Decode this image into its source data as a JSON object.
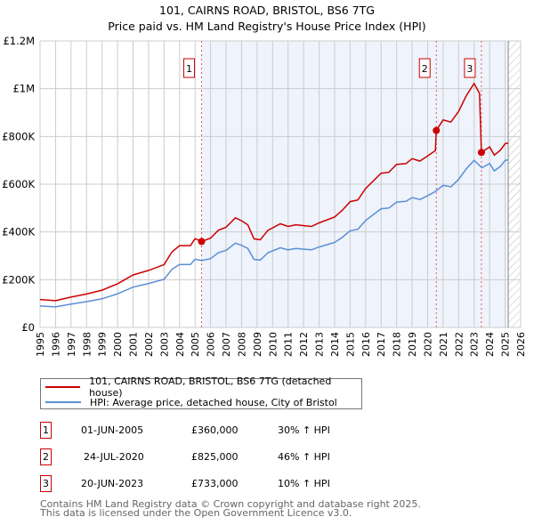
{
  "title": "101, CAIRNS ROAD, BRISTOL, BS6 7TG",
  "subtitle": "Price paid vs. HM Land Registry's House Price Index (HPI)",
  "chart_data": {
    "type": "line",
    "title": "101, CAIRNS ROAD, BRISTOL, BS6 7TG — Price paid vs. HM Land Registry's House Price Index (HPI)",
    "xlim": [
      1995,
      2026
    ],
    "ylim": [
      0,
      1200000
    ],
    "x_ticks": [
      "1995",
      "1996",
      "1997",
      "1998",
      "1999",
      "2000",
      "2001",
      "2002",
      "2003",
      "2004",
      "2005",
      "2006",
      "2007",
      "2008",
      "2009",
      "2010",
      "2011",
      "2012",
      "2013",
      "2014",
      "2015",
      "2016",
      "2017",
      "2018",
      "2019",
      "2020",
      "2021",
      "2022",
      "2023",
      "2024",
      "2025",
      "2026"
    ],
    "y_ticks": [
      {
        "v": 0,
        "label": "£0"
      },
      {
        "v": 200000,
        "label": "£200K"
      },
      {
        "v": 400000,
        "label": "£400K"
      },
      {
        "v": 600000,
        "label": "£600K"
      },
      {
        "v": 800000,
        "label": "£800K"
      },
      {
        "v": 1000000,
        "label": "£1M"
      },
      {
        "v": 1200000,
        "label": "£1.2M"
      }
    ],
    "grid": true,
    "shaded_range": [
      2005.42,
      2025.2
    ],
    "data_end": 2025.2,
    "series": [
      {
        "name": "101, CAIRNS ROAD, BRISTOL, BS6 7TG (detached house)",
        "color": "#cc0000",
        "x": [
          1995,
          1996,
          1997,
          1998,
          1999,
          2000,
          2001,
          2002,
          2003,
          2003.5,
          2004,
          2004.7,
          2005,
          2005.42,
          2006,
          2006.5,
          2007,
          2007.6,
          2008,
          2008.4,
          2008.8,
          2009.2,
          2009.7,
          2010.5,
          2011,
          2011.5,
          2012.5,
          2013,
          2014,
          2014.5,
          2015,
          2015.5,
          2016,
          2017,
          2017.5,
          2018,
          2018.6,
          2019,
          2019.5,
          2020,
          2020.5,
          2020.56,
          2021,
          2021.5,
          2022,
          2022.5,
          2023,
          2023.35,
          2023.47,
          2024,
          2024.3,
          2024.7,
          2025,
          2025.2
        ],
        "y": [
          117000,
          112000,
          127000,
          140000,
          156000,
          183000,
          220000,
          239000,
          263000,
          316000,
          343000,
          343000,
          372000,
          360000,
          374000,
          407000,
          420000,
          459000,
          447000,
          430000,
          371000,
          367000,
          407000,
          434000,
          423000,
          430000,
          423000,
          438000,
          463000,
          491000,
          527000,
          534000,
          582000,
          646000,
          650000,
          683000,
          686000,
          707000,
          697000,
          718000,
          741000,
          825000,
          869000,
          860000,
          905000,
          971000,
          1022000,
          980000,
          733000,
          756000,
          722000,
          743000,
          770000,
          772000
        ]
      },
      {
        "name": "HPI: Average price, detached house, City of Bristol",
        "color": "#5b8fd6",
        "x": [
          1995,
          1996,
          1997,
          1998,
          1999,
          2000,
          2001,
          2002,
          2003,
          2003.5,
          2004,
          2004.7,
          2005,
          2005.42,
          2006,
          2006.5,
          2007,
          2007.6,
          2008,
          2008.4,
          2008.8,
          2009.2,
          2009.7,
          2010.5,
          2011,
          2011.5,
          2012.5,
          2013,
          2014,
          2014.5,
          2015,
          2015.5,
          2016,
          2017,
          2017.5,
          2018,
          2018.6,
          2019,
          2019.5,
          2020,
          2020.5,
          2021,
          2021.5,
          2022,
          2022.5,
          2023,
          2023.5,
          2024,
          2024.3,
          2024.7,
          2025,
          2025.2
        ],
        "y": [
          90000,
          86000,
          98000,
          108000,
          120000,
          141000,
          169000,
          184000,
          202000,
          243000,
          264000,
          264000,
          286000,
          280000,
          288000,
          313000,
          323000,
          353000,
          344000,
          331000,
          285000,
          282000,
          313000,
          334000,
          325000,
          331000,
          325000,
          337000,
          356000,
          378000,
          405000,
          411000,
          448000,
          497000,
          500000,
          525000,
          528000,
          544000,
          536000,
          552000,
          570000,
          595000,
          589000,
          620000,
          665000,
          700000,
          669000,
          687000,
          656000,
          675000,
          700000,
          702000
        ]
      }
    ],
    "sales": [
      {
        "id": "1",
        "x": 2005.42,
        "y": 360000
      },
      {
        "id": "2",
        "x": 2020.56,
        "y": 825000
      },
      {
        "id": "3",
        "x": 2023.47,
        "y": 733000
      }
    ]
  },
  "legend": [
    {
      "label": "101, CAIRNS ROAD, BRISTOL, BS6 7TG (detached house)",
      "color": "#cc0000"
    },
    {
      "label": "HPI: Average price, detached house, City of Bristol",
      "color": "#5b8fd6"
    }
  ],
  "transactions": [
    {
      "num": "1",
      "date": "01-JUN-2005",
      "price": "£360,000",
      "hpi": "30% ↑ HPI"
    },
    {
      "num": "2",
      "date": "24-JUL-2020",
      "price": "£825,000",
      "hpi": "46% ↑ HPI"
    },
    {
      "num": "3",
      "date": "20-JUN-2023",
      "price": "£733,000",
      "hpi": "10% ↑ HPI"
    }
  ],
  "footer": {
    "line1": "Contains HM Land Registry data © Crown copyright and database right 2025.",
    "line2": "This data is licensed under the Open Government Licence v3.0."
  }
}
